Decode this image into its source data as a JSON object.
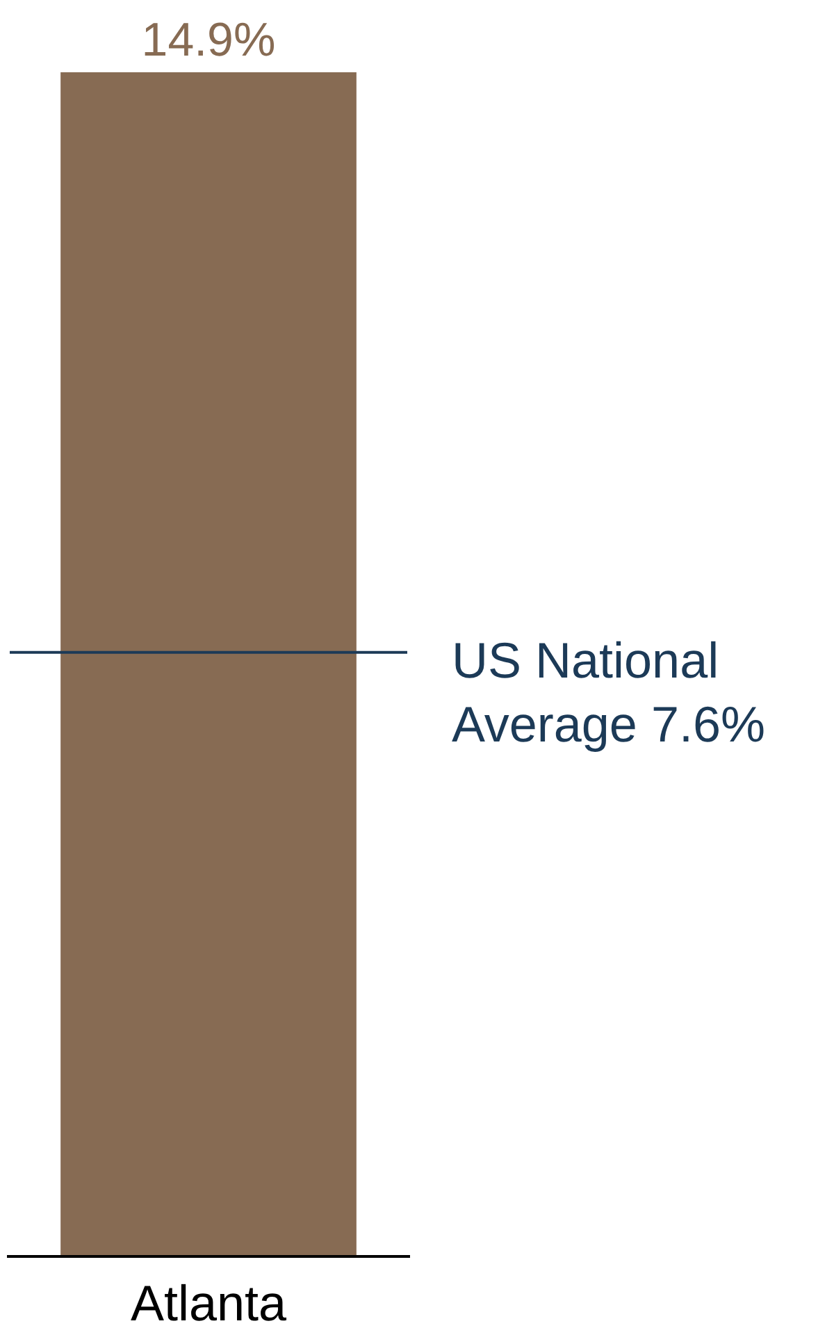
{
  "chart_data": {
    "type": "bar",
    "categories": [
      "Atlanta"
    ],
    "values": [
      14.9
    ],
    "value_labels": [
      "14.9%"
    ],
    "color": "#876b53",
    "ref_lines": [
      {
        "axis": "y",
        "value": 7.6,
        "label": "US National Average 7.6%",
        "color": "#1c3a57"
      }
    ]
  }
}
